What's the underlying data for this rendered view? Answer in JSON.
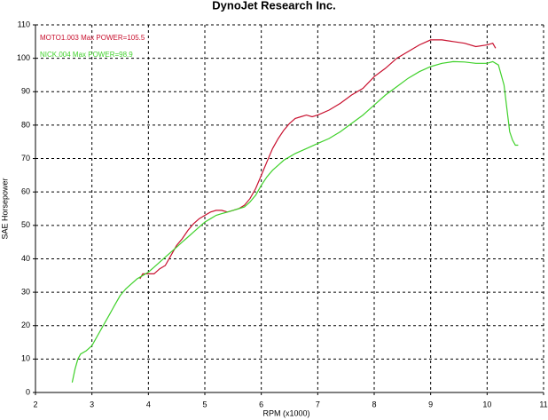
{
  "chart_data": {
    "type": "line",
    "title": "DynoJet Research Inc.",
    "x_label": "RPM (x1000)",
    "y_label": "SAE Horsepower",
    "xlim": [
      2,
      11
    ],
    "xticks": [
      2,
      3,
      4,
      5,
      6,
      7,
      8,
      9,
      10,
      11
    ],
    "ylim": [
      0,
      110
    ],
    "yticks": [
      0,
      10,
      20,
      30,
      40,
      50,
      60,
      70,
      80,
      90,
      100,
      110
    ],
    "grid": true,
    "series": [
      {
        "name": "MOTO1.003  Max POWER=105.5",
        "color": "#c8102e",
        "x": [
          3.85,
          3.9,
          4.0,
          4.1,
          4.2,
          4.3,
          4.4,
          4.5,
          4.6,
          4.7,
          4.8,
          4.9,
          5.0,
          5.1,
          5.2,
          5.3,
          5.4,
          5.5,
          5.6,
          5.7,
          5.8,
          5.9,
          6.0,
          6.1,
          6.2,
          6.3,
          6.4,
          6.5,
          6.6,
          6.7,
          6.8,
          6.9,
          7.0,
          7.2,
          7.4,
          7.6,
          7.8,
          8.0,
          8.2,
          8.4,
          8.6,
          8.8,
          9.0,
          9.2,
          9.4,
          9.6,
          9.8,
          10.0,
          10.1,
          10.15
        ],
        "values": [
          34,
          35.5,
          35.5,
          35.5,
          37,
          38,
          41,
          44,
          46,
          48.5,
          50.5,
          52,
          53,
          54,
          54.5,
          54.5,
          54,
          54.5,
          55,
          56,
          58,
          61,
          65,
          69,
          73,
          76,
          78.5,
          80.5,
          82,
          82.5,
          83,
          82.5,
          83,
          84.5,
          86.5,
          89,
          91,
          94.5,
          97,
          100,
          102,
          104,
          105.5,
          105.5,
          105,
          104.5,
          103.5,
          104,
          104.5,
          103
        ]
      },
      {
        "name": "NICK.004  Max POWER=98.9",
        "color": "#3fd12a",
        "x": [
          2.65,
          2.7,
          2.75,
          2.8,
          2.9,
          3.0,
          3.1,
          3.2,
          3.3,
          3.4,
          3.5,
          3.6,
          3.7,
          3.8,
          3.9,
          4.0,
          4.1,
          4.2,
          4.3,
          4.4,
          4.5,
          4.6,
          4.7,
          4.8,
          4.9,
          5.0,
          5.1,
          5.2,
          5.3,
          5.4,
          5.5,
          5.6,
          5.7,
          5.8,
          5.9,
          6.0,
          6.1,
          6.2,
          6.3,
          6.4,
          6.5,
          6.6,
          6.8,
          7.0,
          7.2,
          7.4,
          7.6,
          7.8,
          8.0,
          8.2,
          8.4,
          8.6,
          8.8,
          9.0,
          9.2,
          9.4,
          9.6,
          9.8,
          10.0,
          10.1,
          10.2,
          10.3,
          10.35,
          10.4,
          10.45,
          10.5,
          10.55
        ],
        "values": [
          3,
          7,
          10,
          11.5,
          12.5,
          14,
          17,
          20,
          23,
          26,
          29,
          31,
          32.5,
          34,
          35,
          36,
          37.5,
          39,
          40.5,
          42,
          43.5,
          45,
          46.5,
          48,
          49.5,
          51,
          52,
          53,
          53.5,
          54,
          54.5,
          55,
          55.5,
          57,
          59,
          62,
          64.5,
          66.5,
          68,
          69.5,
          70.5,
          71.5,
          73,
          74.5,
          76,
          78,
          80.5,
          83,
          86,
          89,
          91.5,
          94,
          96,
          97.5,
          98.5,
          99,
          98.9,
          98.5,
          98.5,
          99,
          98,
          92,
          85,
          78,
          75.5,
          74,
          74
        ]
      }
    ]
  }
}
